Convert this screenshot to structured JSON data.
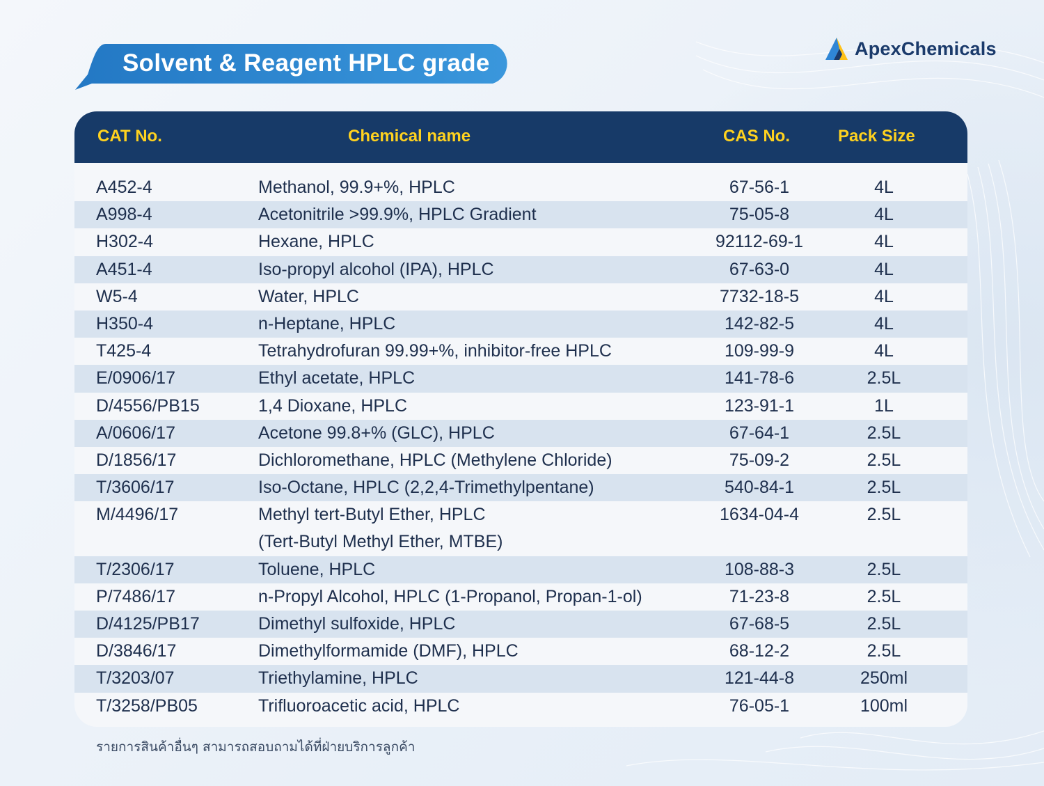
{
  "header": {
    "title": "Solvent & Reagent HPLC grade",
    "brand_name": "ApexChemicals",
    "brand_icon": "triangle-logo-icon"
  },
  "colors": {
    "banner": "#2e86d0",
    "table_header": "#173a68",
    "header_text": "#ffd21f",
    "row_alt": "#d8e3ef",
    "text": "#1e2f4d"
  },
  "table": {
    "columns": [
      "CAT No.",
      "Chemical name",
      "CAS No.",
      "Pack Size"
    ],
    "rows": [
      {
        "cat": "A452-4",
        "name": "Methanol, 99.9+%, HPLC",
        "cas": "67-56-1",
        "pack": "4L"
      },
      {
        "cat": "A998-4",
        "name": "Acetonitrile >99.9%, HPLC Gradient",
        "cas": "75-05-8",
        "pack": "4L"
      },
      {
        "cat": "H302-4",
        "name": "Hexane, HPLC",
        "cas": "92112-69-1",
        "pack": "4L"
      },
      {
        "cat": "A451-4",
        "name": "Iso-propyl alcohol (IPA), HPLC",
        "cas": "67-63-0",
        "pack": "4L"
      },
      {
        "cat": "W5-4",
        "name": "Water, HPLC",
        "cas": "7732-18-5",
        "pack": "4L"
      },
      {
        "cat": "H350-4",
        "name": "n-Heptane, HPLC",
        "cas": "142-82-5",
        "pack": "4L"
      },
      {
        "cat": "T425-4",
        "name": "Tetrahydrofuran 99.99+%, inhibitor-free HPLC",
        "cas": "109-99-9",
        "pack": "4L"
      },
      {
        "cat": "E/0906/17",
        "name": "Ethyl acetate, HPLC",
        "cas": "141-78-6",
        "pack": "2.5L"
      },
      {
        "cat": "D/4556/PB15",
        "name": "1,4 Dioxane, HPLC",
        "cas": "123-91-1",
        "pack": "1L"
      },
      {
        "cat": "A/0606/17",
        "name": "Acetone 99.8+% (GLC), HPLC",
        "cas": "67-64-1",
        "pack": "2.5L"
      },
      {
        "cat": "D/1856/17",
        "name": "Dichloromethane, HPLC (Methylene Chloride)",
        "cas": "75-09-2",
        "pack": "2.5L"
      },
      {
        "cat": "T/3606/17",
        "name": "Iso-Octane, HPLC (2,2,4-Trimethylpentane)",
        "cas": "540-84-1",
        "pack": "2.5L"
      },
      {
        "cat": "M/4496/17",
        "name": "Methyl tert-Butyl Ether, HPLC",
        "name2": "(Tert-Butyl Methyl Ether, MTBE)",
        "cas": "1634-04-4",
        "pack": "2.5L"
      },
      {
        "cat": "T/2306/17",
        "name": "Toluene, HPLC",
        "cas": "108-88-3",
        "pack": "2.5L"
      },
      {
        "cat": "P/7486/17",
        "name": "n-Propyl Alcohol, HPLC (1-Propanol, Propan-1-ol)",
        "cas": "71-23-8",
        "pack": "2.5L"
      },
      {
        "cat": "D/4125/PB17",
        "name": "Dimethyl sulfoxide, HPLC",
        "cas": "67-68-5",
        "pack": "2.5L"
      },
      {
        "cat": "D/3846/17",
        "name": "Dimethylformamide (DMF), HPLC",
        "cas": "68-12-2",
        "pack": "2.5L"
      },
      {
        "cat": "T/3203/07",
        "name": "Triethylamine, HPLC",
        "cas": "121-44-8",
        "pack": "250ml"
      },
      {
        "cat": "T/3258/PB05",
        "name": "Trifluoroacetic acid, HPLC",
        "cas": "76-05-1",
        "pack": "100ml"
      }
    ]
  },
  "footnote": "รายการสินค้าอื่นๆ สามารถสอบถามได้ที่ฝ่ายบริการลูกค้า"
}
